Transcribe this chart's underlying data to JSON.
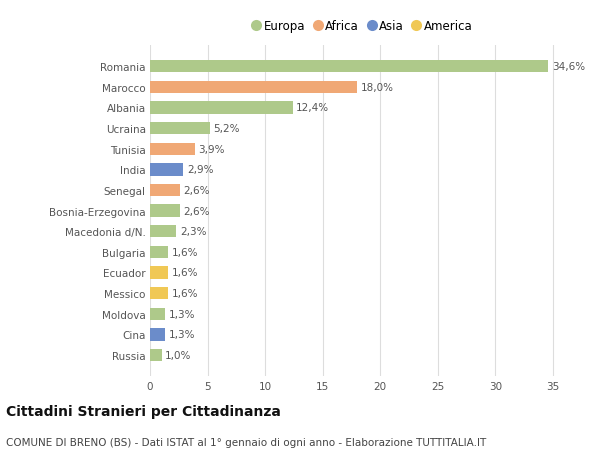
{
  "countries": [
    "Romania",
    "Marocco",
    "Albania",
    "Ucraina",
    "Tunisia",
    "India",
    "Senegal",
    "Bosnia-Erzegovina",
    "Macedonia d/N.",
    "Bulgaria",
    "Ecuador",
    "Messico",
    "Moldova",
    "Cina",
    "Russia"
  ],
  "values": [
    34.6,
    18.0,
    12.4,
    5.2,
    3.9,
    2.9,
    2.6,
    2.6,
    2.3,
    1.6,
    1.6,
    1.6,
    1.3,
    1.3,
    1.0
  ],
  "labels": [
    "34,6%",
    "18,0%",
    "12,4%",
    "5,2%",
    "3,9%",
    "2,9%",
    "2,6%",
    "2,6%",
    "2,3%",
    "1,6%",
    "1,6%",
    "1,6%",
    "1,3%",
    "1,3%",
    "1,0%"
  ],
  "continents": [
    "Europa",
    "Africa",
    "Europa",
    "Europa",
    "Africa",
    "Asia",
    "Africa",
    "Europa",
    "Europa",
    "Europa",
    "America",
    "America",
    "Europa",
    "Asia",
    "Europa"
  ],
  "continent_colors": {
    "Europa": "#aec98a",
    "Africa": "#f0a875",
    "Asia": "#6b8cca",
    "America": "#f0c855"
  },
  "legend_order": [
    "Europa",
    "Africa",
    "Asia",
    "America"
  ],
  "title": "Cittadini Stranieri per Cittadinanza",
  "subtitle": "COMUNE DI BRENO (BS) - Dati ISTAT al 1° gennaio di ogni anno - Elaborazione TUTTITALIA.IT",
  "xlim": [
    0,
    37
  ],
  "xticks": [
    0,
    5,
    10,
    15,
    20,
    25,
    30,
    35
  ],
  "bg_color": "#ffffff",
  "grid_color": "#dddddd",
  "bar_height": 0.6,
  "title_fontsize": 10,
  "subtitle_fontsize": 7.5,
  "label_fontsize": 7.5,
  "tick_fontsize": 7.5,
  "legend_fontsize": 8.5
}
